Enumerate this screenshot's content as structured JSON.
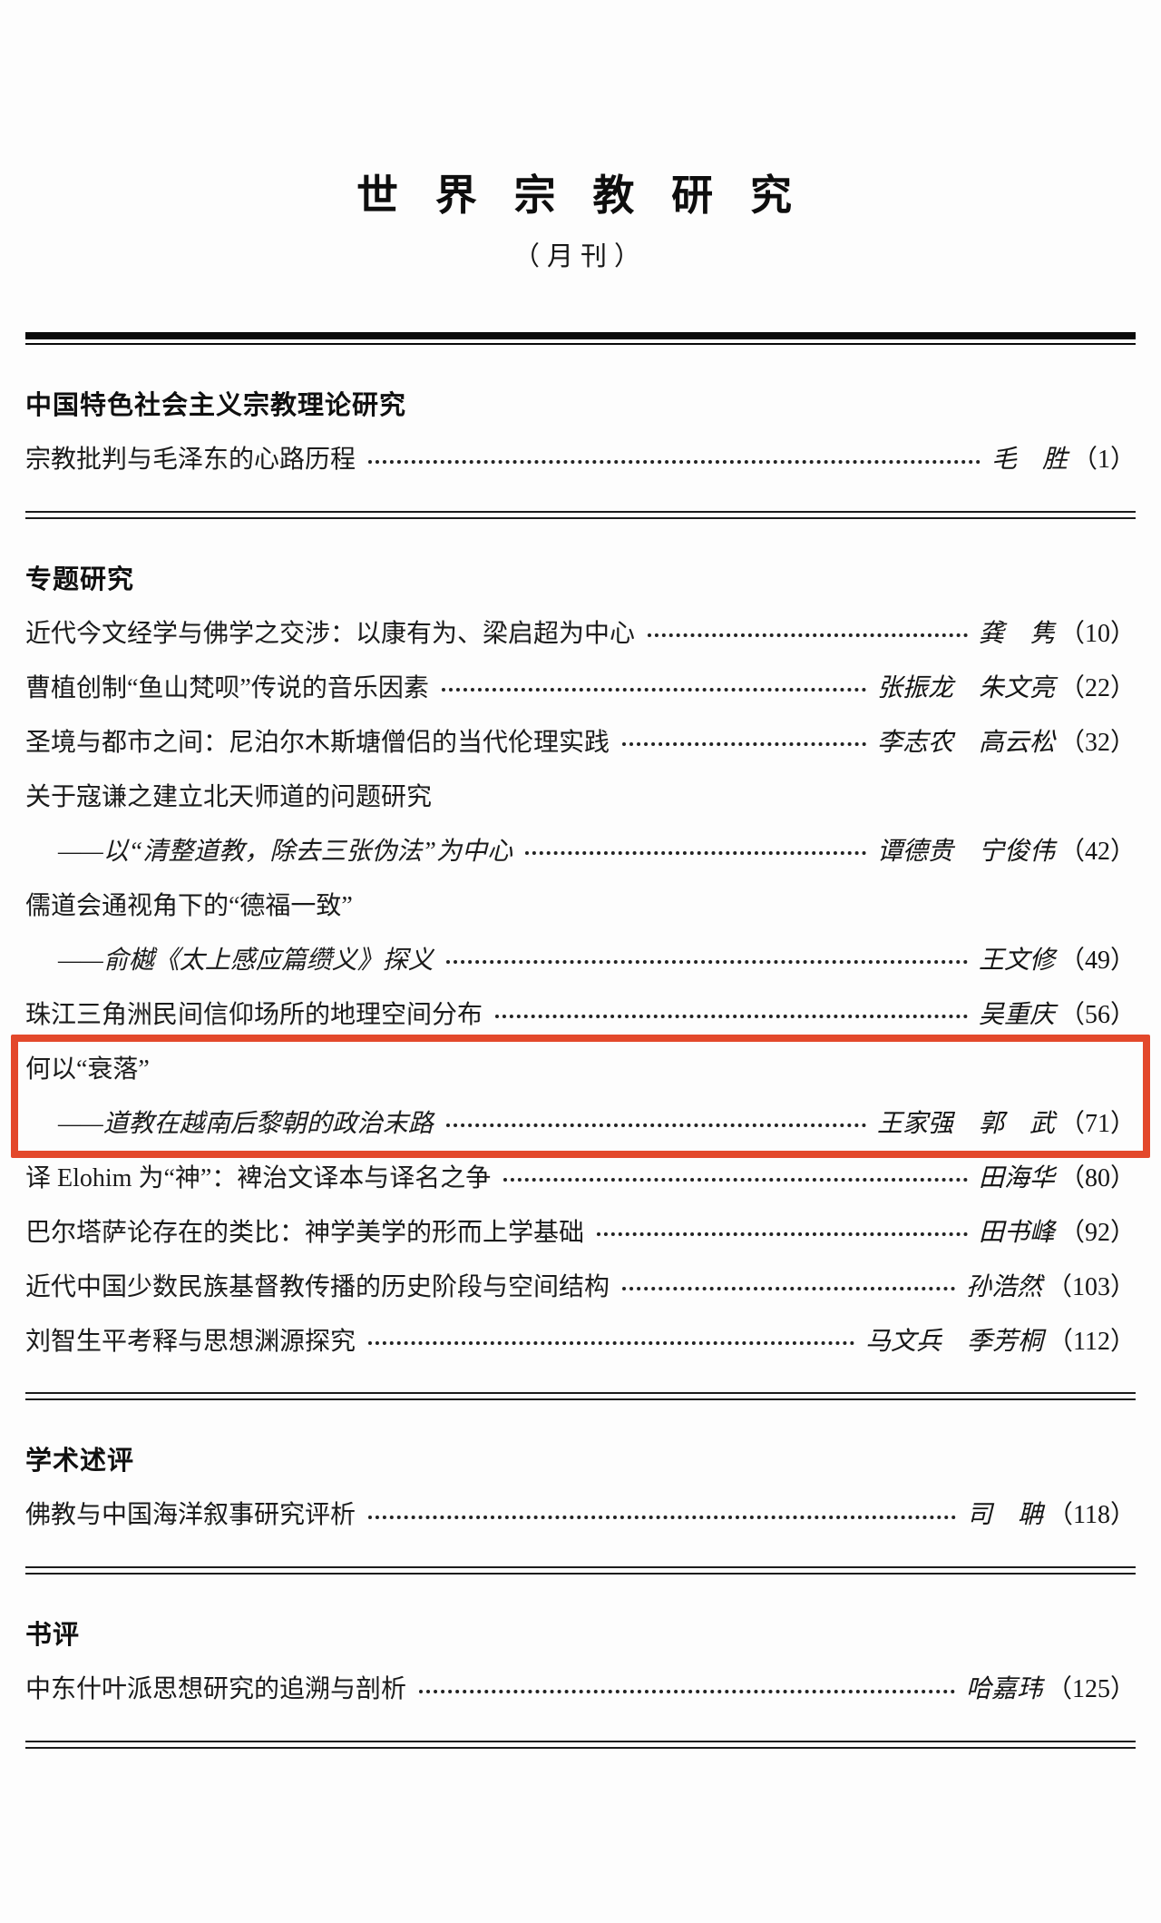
{
  "document": {
    "title": "世 界 宗 教 研 究",
    "subtitle": "（月刊）"
  },
  "colors": {
    "highlight_border": "#e3482b",
    "text": "#1d1d1d",
    "rule": "#0a0a0a"
  },
  "sections": [
    {
      "heading": "中国特色社会主义宗教理论研究",
      "articles": [
        {
          "lines": [
            {
              "text": "宗教批判与毛泽东的心路历程",
              "authors": "毛　胜",
              "page": "（1）"
            }
          ]
        }
      ]
    },
    {
      "heading": "专题研究",
      "articles": [
        {
          "lines": [
            {
              "text": "近代今文经学与佛学之交涉：以康有为、梁启超为中心",
              "authors": "龚　隽",
              "page": "（10）"
            }
          ]
        },
        {
          "lines": [
            {
              "text": "曹植创制“鱼山梵呗”传说的音乐因素",
              "authors": "张振龙　朱文亮",
              "page": "（22）"
            }
          ]
        },
        {
          "lines": [
            {
              "text": "圣境与都市之间：尼泊尔木斯塘僧侣的当代伦理实践",
              "authors": "李志农　高云松",
              "page": "（32）"
            }
          ]
        },
        {
          "lines": [
            {
              "text": "关于寇谦之建立北天师道的问题研究"
            },
            {
              "text": "——以“清整道教，除去三张伪法”为中心",
              "sub": true,
              "authors": "谭德贵　宁俊伟",
              "page": "（42）"
            }
          ]
        },
        {
          "lines": [
            {
              "text": "儒道会通视角下的“德福一致”"
            },
            {
              "text": "——俞樾《太上感应篇缵义》探义",
              "sub": true,
              "authors": "王文修",
              "page": "（49）"
            }
          ]
        },
        {
          "lines": [
            {
              "text": "珠江三角洲民间信仰场所的地理空间分布",
              "authors": "吴重庆",
              "page": "（56）"
            }
          ]
        },
        {
          "highlight": true,
          "lines": [
            {
              "text": "何以“衰落”"
            },
            {
              "text": "——道教在越南后黎朝的政治末路",
              "sub": true,
              "authors": "王家强　郭　武",
              "page": "（71）"
            }
          ]
        },
        {
          "lines": [
            {
              "text": "译 Elohim 为“神”：裨治文译本与译名之争",
              "authors": "田海华",
              "page": "（80）"
            }
          ]
        },
        {
          "lines": [
            {
              "text": "巴尔塔萨论存在的类比：神学美学的形而上学基础",
              "authors": "田书峰",
              "page": "（92）"
            }
          ]
        },
        {
          "lines": [
            {
              "text": "近代中国少数民族基督教传播的历史阶段与空间结构",
              "authors": "孙浩然",
              "page": "（103）"
            }
          ]
        },
        {
          "lines": [
            {
              "text": "刘智生平考释与思想渊源探究",
              "authors": "马文兵　季芳桐",
              "page": "（112）"
            }
          ]
        }
      ]
    },
    {
      "heading": "学术述评",
      "articles": [
        {
          "lines": [
            {
              "text": "佛教与中国海洋叙事研究评析",
              "authors": "司　聃",
              "page": "（118）"
            }
          ]
        }
      ]
    },
    {
      "heading": "书评",
      "articles": [
        {
          "lines": [
            {
              "text": "中东什叶派思想研究的追溯与剖析",
              "authors": "哈嘉玮",
              "page": "（125）"
            }
          ]
        }
      ]
    }
  ]
}
